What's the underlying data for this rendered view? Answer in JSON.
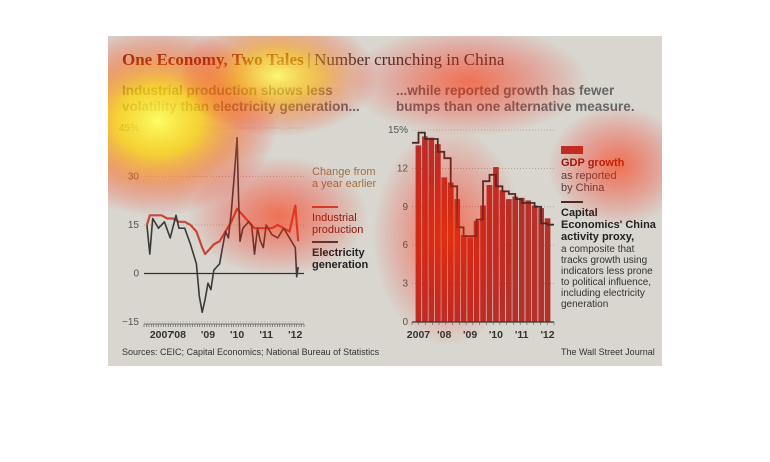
{
  "title": {
    "main": "One Economy, Two Tales",
    "separator": "|",
    "sub": "Number crunching in China"
  },
  "left_headline": "Industrial production shows less volatility than electricity generation...",
  "right_headline": "...while reported growth has fewer bumps than one alternative measure.",
  "left_legend": {
    "note": "Change from a year earlier",
    "series1": "Industrial production",
    "series2": "Electricity generation"
  },
  "right_legend": {
    "series1_name": "GDP growth",
    "series1_desc": "as reported by China",
    "series2_name": "Capital Economics' China activity proxy,",
    "series2_desc": "a composite that tracks growth using indicators less prone to political influence, including electricity generation"
  },
  "footer": {
    "sources": "Sources: CEIC; Capital Economics; National Bureau of Statistics",
    "credit": "The Wall Street Journal"
  },
  "colors": {
    "industrial": "#c8463a",
    "electricity": "#3a3a3a",
    "gdp_bar": "#b5312a",
    "proxy": "#4a2a28"
  },
  "chart_data": [
    {
      "type": "line",
      "y_ticks": [
        "45%",
        "30",
        "15",
        "0",
        "−15"
      ],
      "y_values": [
        45,
        30,
        15,
        0,
        -15
      ],
      "ylim": [
        -15,
        45
      ],
      "x_ticks": [
        "2007",
        "'08",
        "'09",
        "'10",
        "'11",
        "'12"
      ],
      "x_tick_positions": [
        2007,
        2008,
        2009,
        2010,
        2011,
        2012
      ],
      "xlim": [
        2006.8,
        2012.3
      ],
      "series": [
        {
          "name": "Industrial production",
          "x": [
            2006.9,
            2007.0,
            2007.2,
            2007.4,
            2007.6,
            2007.8,
            2008.0,
            2008.2,
            2008.4,
            2008.6,
            2008.8,
            2008.9,
            2009.0,
            2009.2,
            2009.4,
            2009.6,
            2009.8,
            2010.0,
            2010.2,
            2010.4,
            2010.6,
            2010.8,
            2011.0,
            2011.2,
            2011.4,
            2011.6,
            2011.8,
            2012.0,
            2012.1
          ],
          "y": [
            15,
            18,
            18,
            18,
            17,
            17,
            16,
            16,
            15,
            13,
            8,
            6,
            7,
            9,
            10,
            13,
            16,
            20,
            18,
            16,
            14,
            14,
            14,
            14,
            15,
            14,
            13,
            21,
            10
          ]
        },
        {
          "name": "Electricity generation",
          "x": [
            2006.9,
            2007.0,
            2007.1,
            2007.3,
            2007.5,
            2007.7,
            2007.9,
            2008.0,
            2008.2,
            2008.4,
            2008.6,
            2008.7,
            2008.8,
            2008.9,
            2009.0,
            2009.1,
            2009.2,
            2009.3,
            2009.4,
            2009.5,
            2009.6,
            2009.7,
            2009.8,
            2009.9,
            2010.0,
            2010.05,
            2010.1,
            2010.2,
            2010.3,
            2010.4,
            2010.5,
            2010.6,
            2010.7,
            2010.8,
            2010.9,
            2011.0,
            2011.2,
            2011.4,
            2011.6,
            2011.8,
            2012.0,
            2012.05,
            2012.1
          ],
          "y": [
            15,
            6,
            17,
            14,
            16,
            11,
            18,
            14,
            14,
            9,
            3,
            -7,
            -12,
            -8,
            -3,
            -5,
            1,
            2,
            3,
            8,
            13,
            11,
            19,
            30,
            42,
            24,
            10,
            14,
            15,
            16,
            15,
            6,
            14,
            10,
            8,
            15,
            12,
            11,
            14,
            11,
            8,
            -1,
            2
          ]
        }
      ],
      "annotations": [
        "Change from a year earlier"
      ]
    },
    {
      "type": "bar",
      "y_ticks": [
        "15%",
        "12",
        "9",
        "6",
        "3",
        "0"
      ],
      "y_values": [
        15,
        12,
        9,
        6,
        3,
        0
      ],
      "ylim": [
        0,
        15
      ],
      "x_ticks": [
        "2007",
        "'08",
        "'09",
        "'10",
        "'11",
        "'12"
      ],
      "x_tick_positions": [
        2007,
        2008,
        2009,
        2010,
        2011,
        2012
      ],
      "xlim": [
        2006.75,
        2012.25
      ],
      "series": [
        {
          "name": "GDP growth",
          "x": [
            2007.0,
            2007.25,
            2007.5,
            2007.75,
            2008.0,
            2008.25,
            2008.5,
            2008.75,
            2009.0,
            2009.25,
            2009.5,
            2009.75,
            2010.0,
            2010.25,
            2010.5,
            2010.75,
            2011.0,
            2011.25,
            2011.5,
            2011.75,
            2012.0
          ],
          "y": [
            13.8,
            14.5,
            14.4,
            13.9,
            11.3,
            10.9,
            9.6,
            6.8,
            6.6,
            7.9,
            9.1,
            10.7,
            12.1,
            10.3,
            9.6,
            9.8,
            9.7,
            9.5,
            9.1,
            8.9,
            8.1
          ]
        },
        {
          "name": "Capital Economics' China activity proxy",
          "x": [
            2006.875,
            2007.125,
            2007.375,
            2007.625,
            2007.875,
            2008.125,
            2008.375,
            2008.625,
            2008.875,
            2009.125,
            2009.375,
            2009.625,
            2009.875,
            2010.125,
            2010.375,
            2010.625,
            2010.875,
            2011.125,
            2011.375,
            2011.625,
            2011.875,
            2012.125
          ],
          "y": [
            14,
            14.8,
            14.3,
            14.3,
            13.3,
            12.8,
            10.6,
            7.4,
            6.7,
            6.7,
            8.0,
            11.0,
            11.5,
            10.6,
            10.2,
            10.0,
            9.6,
            9.3,
            9.3,
            9.0,
            7.7,
            7.6
          ]
        }
      ]
    }
  ]
}
